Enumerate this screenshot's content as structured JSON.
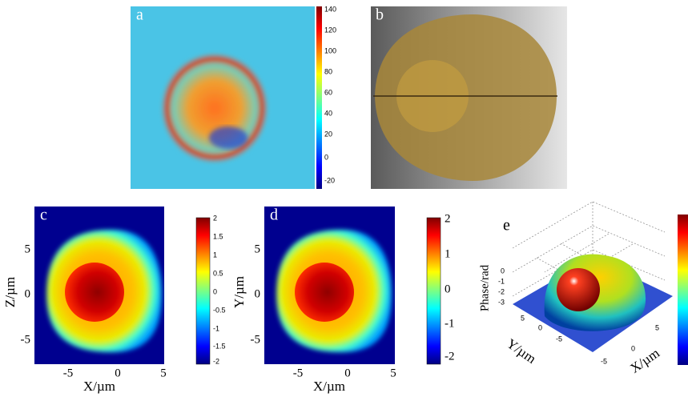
{
  "figure": {
    "panels": [
      {
        "label": "a",
        "colorbar_ticks": [
          "140",
          "120",
          "100",
          "80",
          "60",
          "40",
          "20",
          "0",
          "-20"
        ]
      },
      {
        "label": "b"
      },
      {
        "label": "c",
        "xlabel": "X/µm",
        "ylabel": "Z/µm",
        "xticks": [
          "-5",
          "0",
          "5"
        ],
        "yticks": [
          "5",
          "0",
          "-5"
        ],
        "colorbar_ticks": [
          "2",
          "1.5",
          "1",
          "0.5",
          "0",
          "-0.5",
          "-1",
          "-1.5",
          "-2"
        ]
      },
      {
        "label": "d",
        "xlabel": "X/µm",
        "ylabel": "Y/µm",
        "xticks": [
          "-5",
          "0",
          "5"
        ],
        "yticks": [
          "5",
          "0",
          "-5"
        ],
        "colorbar_ticks": [
          "2",
          "1",
          "0",
          "-1",
          "-2"
        ]
      },
      {
        "label": "e",
        "zlabel": "Phase/rad",
        "zticks": [
          "0",
          "-1",
          "-2",
          "-3"
        ],
        "ylabel": "Y/µm",
        "yticks": [
          "5",
          "0",
          "-5"
        ],
        "xlabel": "X/µm",
        "xticks": [
          "5",
          "0",
          "-5"
        ]
      }
    ]
  }
}
